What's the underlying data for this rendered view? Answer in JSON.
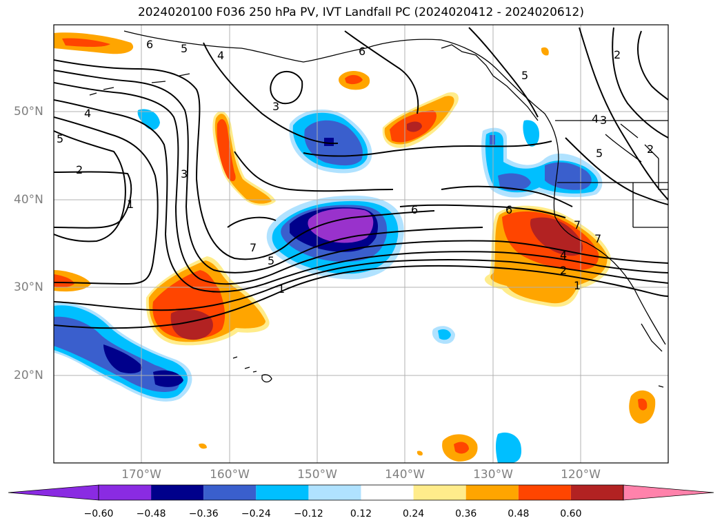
{
  "title": "2024020100 F036 250 hPa PV, IVT Landfall PC (2024020412 - 2024020612)",
  "lon_labels": [
    "170°W",
    "160°W",
    "150°W",
    "140°W",
    "130°W",
    "120°W"
  ],
  "lat_labels": [
    "50°N",
    "40°N",
    "30°N",
    "20°N"
  ],
  "colorbar": {
    "ticks": [
      "−0.60",
      "−0.48",
      "−0.36",
      "−0.24",
      "−0.12",
      "0.12",
      "0.24",
      "0.36",
      "0.48",
      "0.60"
    ],
    "colors": [
      "#8a2be2",
      "#9932cc",
      "#00008b",
      "#3a5fcd",
      "#00bfff",
      "#b0e2ff",
      "#ffffff",
      "#ffec8b",
      "#ffa500",
      "#ff4500",
      "#b22222",
      "#ff82ab"
    ]
  },
  "contour_labels": [
    "6",
    "5",
    "4",
    "4",
    "5",
    "2",
    "1",
    "3",
    "3",
    "6",
    "6",
    "5",
    "2",
    "2",
    "3",
    "5",
    "4",
    "7",
    "5",
    "1",
    "6",
    "7",
    "7",
    "4",
    "2",
    "1"
  ]
}
